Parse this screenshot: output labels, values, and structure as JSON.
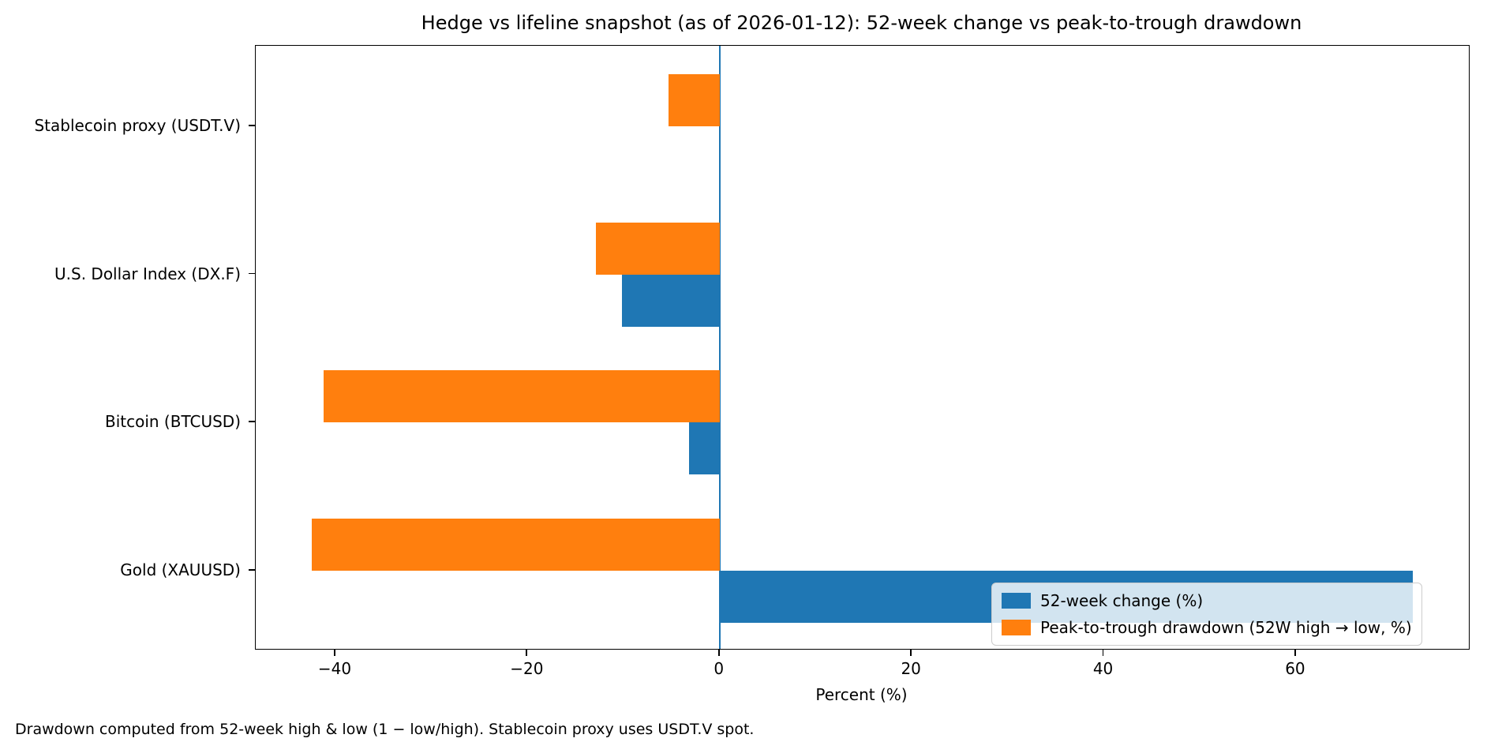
{
  "title": "Hedge vs lifeline snapshot (as of 2026-01-12): 52-week change vs peak-to-trough drawdown",
  "xlabel": "Percent (%)",
  "footnote": "Drawdown computed from 52-week high & low (1 − low/high). Stablecoin proxy uses USDT.V spot.",
  "legend": {
    "items": [
      {
        "label": "52-week change (%)",
        "color": "#1f77b4"
      },
      {
        "label": "Peak-to-trough drawdown (52W high → low, %)",
        "color": "#ff7f0e"
      }
    ]
  },
  "chart_data": {
    "type": "bar",
    "orientation": "horizontal",
    "title": "Hedge vs lifeline snapshot (as of 2026-01-12): 52-week change vs peak-to-trough drawdown",
    "xlabel": "Percent (%)",
    "categories": [
      "Stablecoin proxy (USDT.V)",
      "U.S. Dollar Index (DX.F)",
      "Bitcoin (BTCUSD)",
      "Gold (XAUUSD)"
    ],
    "series": [
      {
        "name": "52-week change (%)",
        "color": "#1f77b4",
        "values": [
          0.0,
          -10.2,
          -3.2,
          72.2
        ]
      },
      {
        "name": "Peak-to-trough drawdown (52W high → low, %)",
        "color": "#ff7f0e",
        "values": [
          -5.3,
          -12.9,
          -41.2,
          -42.5
        ]
      }
    ],
    "xlim": [
      -48.3,
      78.0
    ],
    "xticks": [
      -40,
      -20,
      0,
      20,
      40,
      60
    ],
    "zero_line_color": "#1f77b4",
    "grid": false,
    "legend_position": "lower right",
    "note": "Drawdown computed from 52-week high & low (1 − low/high). Stablecoin proxy uses USDT.V spot."
  }
}
